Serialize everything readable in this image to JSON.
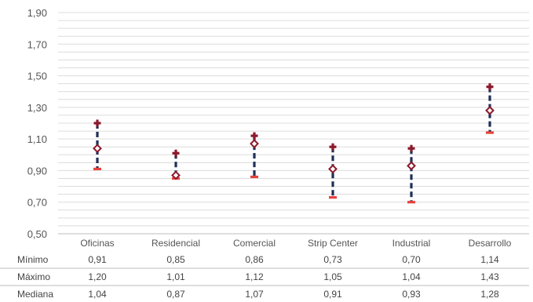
{
  "chart_data": {
    "type": "scatter",
    "categories": [
      "Oficinas",
      "Residencial",
      "Comercial",
      "Strip Center",
      "Industrial",
      "Desarrollo"
    ],
    "series": [
      {
        "name": "Mínimo",
        "values": [
          0.91,
          0.85,
          0.86,
          0.73,
          0.7,
          1.14
        ]
      },
      {
        "name": "Máximo",
        "values": [
          1.2,
          1.01,
          1.12,
          1.05,
          1.04,
          1.43
        ]
      },
      {
        "name": "Mediana",
        "values": [
          1.04,
          0.87,
          1.07,
          0.91,
          0.93,
          1.28
        ]
      }
    ],
    "table": {
      "rows": [
        {
          "label": "Mínimo",
          "values": [
            "0,91",
            "0,85",
            "0,86",
            "0,73",
            "0,70",
            "1,14"
          ]
        },
        {
          "label": "Máximo",
          "values": [
            "1,20",
            "1,01",
            "1,12",
            "1,05",
            "1,04",
            "1,43"
          ]
        },
        {
          "label": "Mediana",
          "values": [
            "1,04",
            "0,87",
            "1,07",
            "0,91",
            "0,93",
            "1,28"
          ]
        }
      ]
    },
    "yticks": [
      "0,50",
      "0,70",
      "0,90",
      "1,10",
      "1,30",
      "1,50",
      "1,70",
      "1,90"
    ],
    "ylim": [
      0.5,
      1.9
    ],
    "grid": true,
    "legend": "top",
    "colors": {
      "min": "#e8413c",
      "max": "#8b1a2b",
      "median": "#8b1a2b",
      "range": "#1f2f57"
    }
  }
}
